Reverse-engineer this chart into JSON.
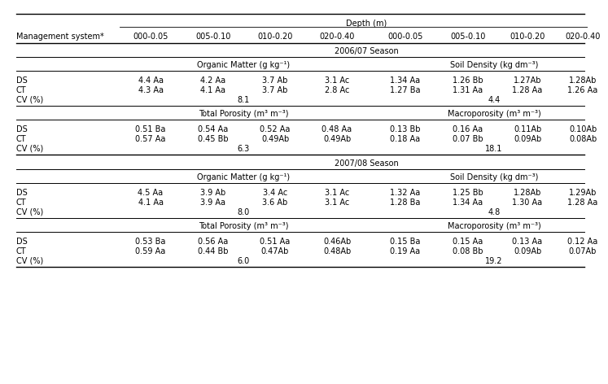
{
  "depth_label": "Depth (m)",
  "col_headers": [
    "000-0.05",
    "005-0.10",
    "010-0.20",
    "020-0.40",
    "000-0.05",
    "005-0.10",
    "010-0.20",
    "020-0.40"
  ],
  "mgmt_label": "Management system*",
  "season1_label": "2006/07 Season",
  "season2_label": "2007/08 Season",
  "om_label": "Organic Matter (g kg⁻¹)",
  "sd_label": "Soil Density (kg dm⁻³)",
  "tp_label": "Total Porosity (m³ m⁻³)",
  "mp_label": "Macroporosity (m³ m⁻³)",
  "rows_2006_om_sd": [
    [
      "DS",
      "4.4 Aa",
      "4.2 Aa",
      "3.7 Ab",
      "3.1 Ac",
      "1.34 Aa",
      "1.26 Bb",
      "1.27Ab",
      "1.28Ab"
    ],
    [
      "CT",
      "4.3 Aa",
      "4.1 Aa",
      "3.7 Ab",
      "2.8 Ac",
      "1.27 Ba",
      "1.31 Aa",
      "1.28 Aa",
      "1.26 Aa"
    ],
    [
      "CV (%)",
      "8.1",
      "4.4"
    ]
  ],
  "rows_2006_tp_mp": [
    [
      "DS",
      "0.51 Ba",
      "0.54 Aa",
      "0.52 Aa",
      "0.48 Aa",
      "0.13 Bb",
      "0.16 Aa",
      "0.11Ab",
      "0.10Ab"
    ],
    [
      "CT",
      "0.57 Aa",
      "0.45 Bb",
      "0.49Ab",
      "0.49Ab",
      "0.18 Aa",
      "0.07 Bb",
      "0.09Ab",
      "0.08Ab"
    ],
    [
      "CV (%)",
      "6.3",
      "18.1"
    ]
  ],
  "rows_2007_om_sd": [
    [
      "DS",
      "4.5 Aa",
      "3.9 Ab",
      "3.4 Ac",
      "3.1 Ac",
      "1.32 Aa",
      "1.25 Bb",
      "1.28Ab",
      "1.29Ab"
    ],
    [
      "CT",
      "4.1 Aa",
      "3.9 Aa",
      "3.6 Ab",
      "3.1 Ac",
      "1.28 Ba",
      "1.34 Aa",
      "1.30 Aa",
      "1.28 Aa"
    ],
    [
      "CV (%)",
      "8.0",
      "4.8"
    ]
  ],
  "rows_2007_tp_mp": [
    [
      "DS",
      "0.53 Ba",
      "0.56 Aa",
      "0.51 Aa",
      "0.46Ab",
      "0.15 Ba",
      "0.15 Aa",
      "0.13 Aa",
      "0.12 Aa"
    ],
    [
      "CT",
      "0.59 Aa",
      "0.44 Bb",
      "0.47Ab",
      "0.48Ab",
      "0.19 Aa",
      "0.08 Bb",
      "0.09Ab",
      "0.07Ab"
    ],
    [
      "CV (%)",
      "6.0",
      "19.2"
    ]
  ],
  "bg_color": "#ffffff",
  "text_color": "#000000",
  "fontsize": 7.0
}
